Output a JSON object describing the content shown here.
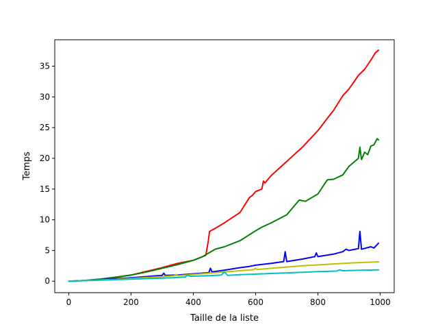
{
  "chart_data": {
    "type": "line",
    "title": "",
    "xlabel": "Taille de la liste",
    "ylabel": "Temps",
    "xlim": [
      -45,
      1045
    ],
    "ylim": [
      -1.87,
      39.3
    ],
    "xticks": [
      0,
      200,
      400,
      600,
      800,
      1000
    ],
    "yticks": [
      0,
      5,
      10,
      15,
      20,
      25,
      30,
      35
    ],
    "grid": false,
    "legend": "none",
    "series": [
      {
        "color": "#ff0000",
        "points": [
          [
            0,
            0
          ],
          [
            50,
            0.12
          ],
          [
            100,
            0.3
          ],
          [
            150,
            0.6
          ],
          [
            200,
            1.0
          ],
          [
            250,
            1.6
          ],
          [
            300,
            2.2
          ],
          [
            350,
            2.9
          ],
          [
            400,
            3.4
          ],
          [
            440,
            4.2
          ],
          [
            448,
            6.5
          ],
          [
            452,
            8.1
          ],
          [
            470,
            8.6
          ],
          [
            500,
            9.5
          ],
          [
            550,
            11.2
          ],
          [
            580,
            13.6
          ],
          [
            590,
            14.0
          ],
          [
            600,
            14.6
          ],
          [
            620,
            15.0
          ],
          [
            625,
            16.3
          ],
          [
            630,
            16.0
          ],
          [
            650,
            17.2
          ],
          [
            700,
            19.5
          ],
          [
            750,
            21.8
          ],
          [
            800,
            24.5
          ],
          [
            830,
            26.5
          ],
          [
            850,
            27.8
          ],
          [
            880,
            30.2
          ],
          [
            900,
            31.3
          ],
          [
            930,
            33.5
          ],
          [
            950,
            34.5
          ],
          [
            970,
            36.0
          ],
          [
            985,
            37.2
          ],
          [
            995,
            37.6
          ]
        ]
      },
      {
        "color": "#008000",
        "points": [
          [
            0,
            0
          ],
          [
            50,
            0.12
          ],
          [
            100,
            0.35
          ],
          [
            150,
            0.65
          ],
          [
            200,
            1.0
          ],
          [
            250,
            1.5
          ],
          [
            300,
            2.1
          ],
          [
            350,
            2.7
          ],
          [
            400,
            3.4
          ],
          [
            430,
            4.0
          ],
          [
            450,
            4.6
          ],
          [
            470,
            5.2
          ],
          [
            500,
            5.6
          ],
          [
            550,
            6.6
          ],
          [
            600,
            8.2
          ],
          [
            620,
            8.8
          ],
          [
            650,
            9.5
          ],
          [
            700,
            10.8
          ],
          [
            740,
            13.2
          ],
          [
            760,
            13.0
          ],
          [
            800,
            14.2
          ],
          [
            830,
            16.5
          ],
          [
            850,
            16.6
          ],
          [
            880,
            17.3
          ],
          [
            900,
            18.7
          ],
          [
            930,
            20.0
          ],
          [
            935,
            21.8
          ],
          [
            940,
            19.8
          ],
          [
            950,
            21.0
          ],
          [
            960,
            20.6
          ],
          [
            970,
            22.0
          ],
          [
            980,
            22.2
          ],
          [
            990,
            23.2
          ],
          [
            995,
            23.0
          ]
        ]
      },
      {
        "color": "#0000ff",
        "points": [
          [
            0,
            0
          ],
          [
            50,
            0.1
          ],
          [
            100,
            0.25
          ],
          [
            150,
            0.4
          ],
          [
            200,
            0.55
          ],
          [
            250,
            0.75
          ],
          [
            300,
            0.95
          ],
          [
            305,
            1.3
          ],
          [
            310,
            0.95
          ],
          [
            350,
            1.0
          ],
          [
            400,
            1.2
          ],
          [
            450,
            1.4
          ],
          [
            455,
            2.1
          ],
          [
            460,
            1.5
          ],
          [
            500,
            1.8
          ],
          [
            550,
            2.2
          ],
          [
            580,
            2.4
          ],
          [
            600,
            2.6
          ],
          [
            650,
            2.9
          ],
          [
            690,
            3.2
          ],
          [
            695,
            4.8
          ],
          [
            700,
            3.2
          ],
          [
            750,
            3.6
          ],
          [
            790,
            4.0
          ],
          [
            795,
            4.6
          ],
          [
            800,
            4.0
          ],
          [
            850,
            4.4
          ],
          [
            880,
            4.8
          ],
          [
            890,
            5.2
          ],
          [
            900,
            5.0
          ],
          [
            930,
            5.3
          ],
          [
            935,
            8.1
          ],
          [
            940,
            5.2
          ],
          [
            970,
            5.6
          ],
          [
            980,
            5.4
          ],
          [
            995,
            6.2
          ]
        ]
      },
      {
        "color": "#bfbf00",
        "points": [
          [
            0,
            0
          ],
          [
            50,
            0.1
          ],
          [
            100,
            0.2
          ],
          [
            150,
            0.3
          ],
          [
            200,
            0.45
          ],
          [
            250,
            0.6
          ],
          [
            300,
            0.75
          ],
          [
            340,
            0.9
          ],
          [
            345,
            1.1
          ],
          [
            350,
            0.9
          ],
          [
            400,
            1.1
          ],
          [
            450,
            1.3
          ],
          [
            500,
            1.5
          ],
          [
            550,
            1.7
          ],
          [
            595,
            1.9
          ],
          [
            600,
            2.1
          ],
          [
            605,
            1.9
          ],
          [
            650,
            2.1
          ],
          [
            700,
            2.3
          ],
          [
            750,
            2.5
          ],
          [
            800,
            2.65
          ],
          [
            850,
            2.8
          ],
          [
            900,
            2.95
          ],
          [
            950,
            3.05
          ],
          [
            995,
            3.15
          ]
        ]
      },
      {
        "color": "#00bfbf",
        "points": [
          [
            0,
            0
          ],
          [
            50,
            0.08
          ],
          [
            100,
            0.16
          ],
          [
            150,
            0.25
          ],
          [
            200,
            0.33
          ],
          [
            250,
            0.42
          ],
          [
            300,
            0.5
          ],
          [
            350,
            0.6
          ],
          [
            375,
            0.68
          ],
          [
            380,
            1.0
          ],
          [
            390,
            0.8
          ],
          [
            420,
            0.85
          ],
          [
            450,
            0.9
          ],
          [
            490,
            1.0
          ],
          [
            500,
            1.5
          ],
          [
            510,
            0.95
          ],
          [
            550,
            1.05
          ],
          [
            600,
            1.15
          ],
          [
            650,
            1.25
          ],
          [
            700,
            1.35
          ],
          [
            750,
            1.45
          ],
          [
            800,
            1.55
          ],
          [
            860,
            1.65
          ],
          [
            870,
            1.85
          ],
          [
            880,
            1.7
          ],
          [
            950,
            1.8
          ],
          [
            995,
            1.85
          ]
        ]
      }
    ]
  }
}
